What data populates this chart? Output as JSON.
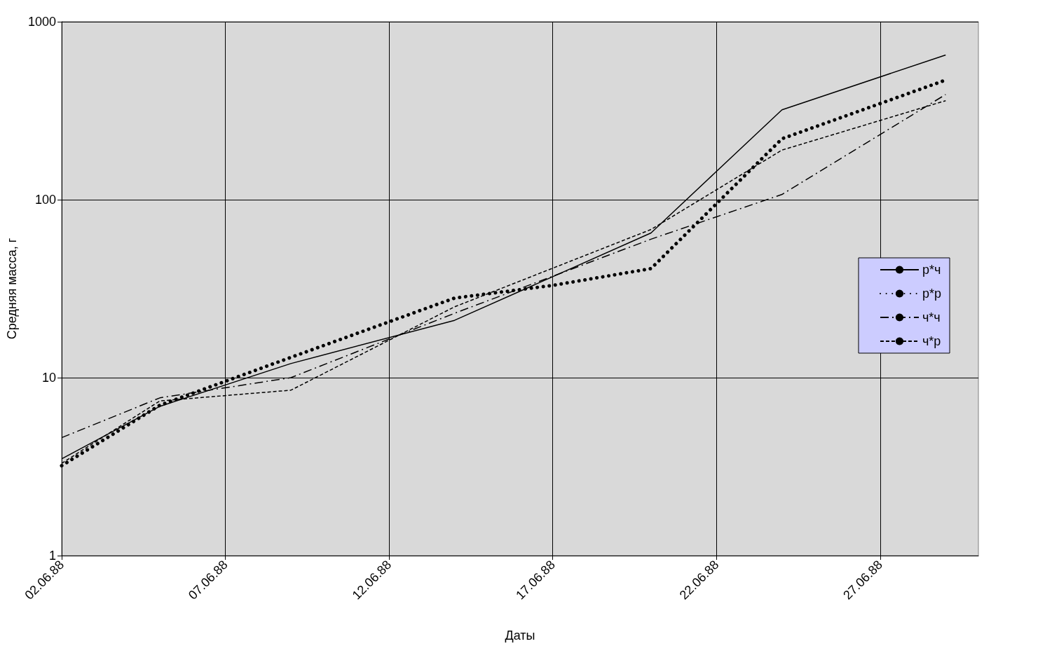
{
  "chart_data": {
    "type": "line",
    "xlabel": "Даты",
    "ylabel": "Средняя масса, г",
    "log": "y",
    "grid": true,
    "legend": "right",
    "marker": "none",
    "xlim": [
      "1988-06-02",
      "1988-06-30"
    ],
    "xticks": [
      {
        "value": "1988-06-02",
        "label": "02.06.88"
      },
      {
        "value": "1988-06-07",
        "label": "07.06.88"
      },
      {
        "value": "1988-06-12",
        "label": "12.06.88"
      },
      {
        "value": "1988-06-17",
        "label": "17.06.88"
      },
      {
        "value": "1988-06-22",
        "label": "22.06.88"
      },
      {
        "value": "1988-06-27",
        "label": "27.06.88"
      }
    ],
    "ylim": [
      1,
      1000
    ],
    "yticks": [
      1,
      10,
      100,
      1000
    ],
    "series": [
      {
        "name": "р*ч",
        "color": "#000000",
        "line_style": "solid",
        "x": [
          "1988-06-02",
          "1988-06-05",
          "1988-06-09",
          "1988-06-14",
          "1988-06-20",
          "1988-06-24",
          "1988-06-29"
        ],
        "values": [
          3.5,
          6.9,
          12,
          21,
          65,
          320,
          650
        ]
      },
      {
        "name": "р*р",
        "color": "#000000",
        "line_style": "dotted",
        "x": [
          "1988-06-02",
          "1988-06-05",
          "1988-06-09",
          "1988-06-14",
          "1988-06-17",
          "1988-06-20",
          "1988-06-24",
          "1988-06-29"
        ],
        "values": [
          3.2,
          7,
          13,
          28,
          33,
          41,
          220,
          470
        ]
      },
      {
        "name": "ч*ч",
        "color": "#000000",
        "line_style": "dashdot",
        "x": [
          "1988-06-02",
          "1988-06-05",
          "1988-06-09",
          "1988-06-14",
          "1988-06-20",
          "1988-06-24",
          "1988-06-29"
        ],
        "values": [
          4.6,
          7.7,
          10,
          23,
          60,
          107,
          390
        ]
      },
      {
        "name": "ч*р",
        "color": "#000000",
        "line_style": "dashed",
        "x": [
          "1988-06-02",
          "1988-06-05",
          "1988-06-09",
          "1988-06-14",
          "1988-06-20",
          "1988-06-24",
          "1988-06-29"
        ],
        "values": [
          3.3,
          7.4,
          8.5,
          25,
          68,
          190,
          360
        ]
      }
    ]
  }
}
